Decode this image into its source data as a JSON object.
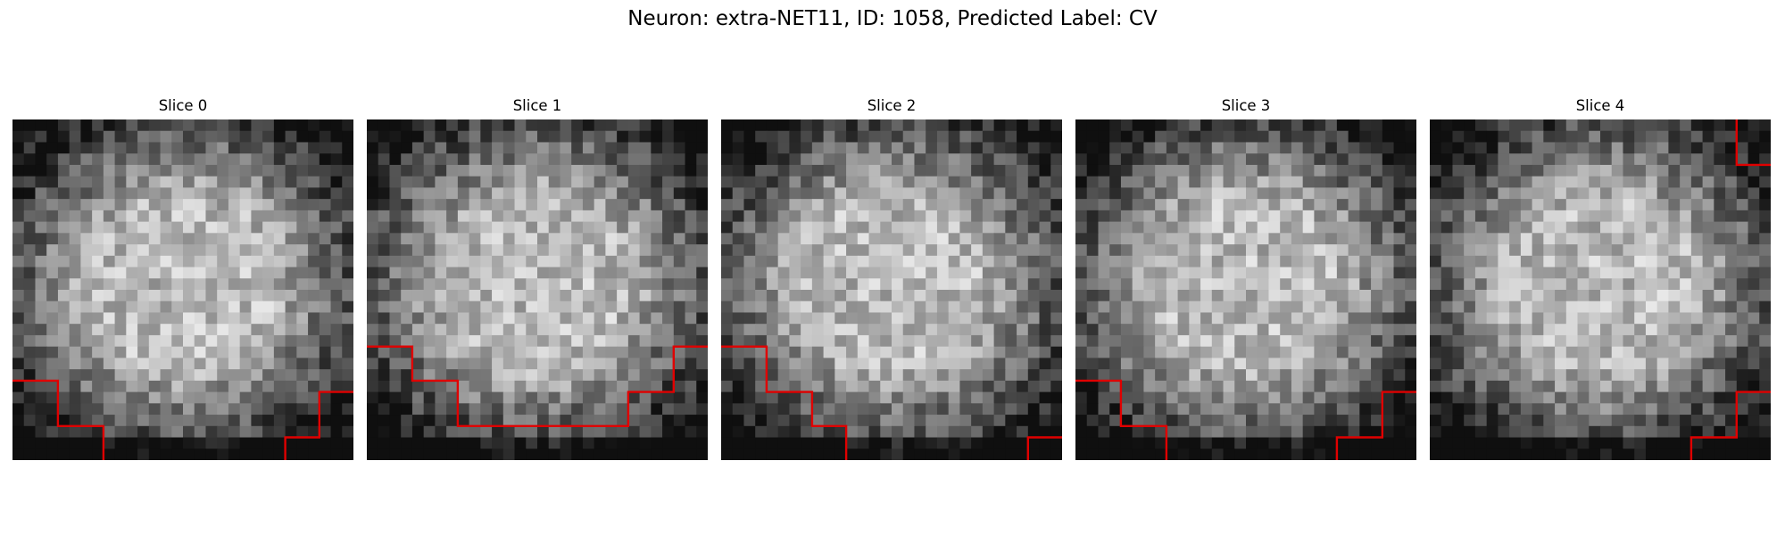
{
  "figure": {
    "suptitle": "Neuron: extra-NET11, ID: 1058, Predicted Label: CV"
  },
  "slices": [
    {
      "title": "Slice 0",
      "seed": 11,
      "contour": [
        [
          [
            0,
            23
          ],
          [
            4,
            23
          ],
          [
            4,
            27
          ],
          [
            8,
            27
          ],
          [
            8,
            30
          ]
        ],
        [
          [
            24,
            30
          ],
          [
            24,
            28
          ],
          [
            27,
            28
          ],
          [
            27,
            24
          ],
          [
            30,
            24
          ]
        ]
      ]
    },
    {
      "title": "Slice 1",
      "seed": 23,
      "contour": [
        [
          [
            0,
            20
          ],
          [
            4,
            20
          ],
          [
            4,
            23
          ],
          [
            8,
            23
          ],
          [
            8,
            27
          ],
          [
            23,
            27
          ],
          [
            23,
            24
          ],
          [
            27,
            24
          ],
          [
            27,
            20
          ],
          [
            30,
            20
          ]
        ]
      ]
    },
    {
      "title": "Slice 2",
      "seed": 37,
      "contour": [
        [
          [
            0,
            20
          ],
          [
            4,
            20
          ],
          [
            4,
            24
          ],
          [
            8,
            24
          ],
          [
            8,
            27
          ],
          [
            11,
            27
          ],
          [
            11,
            30
          ]
        ],
        [
          [
            27,
            30
          ],
          [
            27,
            28
          ],
          [
            30,
            28
          ]
        ]
      ]
    },
    {
      "title": "Slice 3",
      "seed": 53,
      "contour": [
        [
          [
            0,
            23
          ],
          [
            4,
            23
          ],
          [
            4,
            27
          ],
          [
            8,
            27
          ],
          [
            8,
            30
          ]
        ],
        [
          [
            23,
            30
          ],
          [
            23,
            28
          ],
          [
            27,
            28
          ],
          [
            27,
            24
          ],
          [
            30,
            24
          ]
        ]
      ]
    },
    {
      "title": "Slice 4",
      "seed": 71,
      "contour": [
        [
          [
            27,
            0
          ],
          [
            27,
            4
          ],
          [
            30,
            4
          ]
        ],
        [
          [
            23,
            30
          ],
          [
            23,
            28
          ],
          [
            27,
            28
          ],
          [
            27,
            24
          ],
          [
            30,
            24
          ]
        ]
      ]
    }
  ],
  "colors": {
    "contour": "#e00000"
  }
}
